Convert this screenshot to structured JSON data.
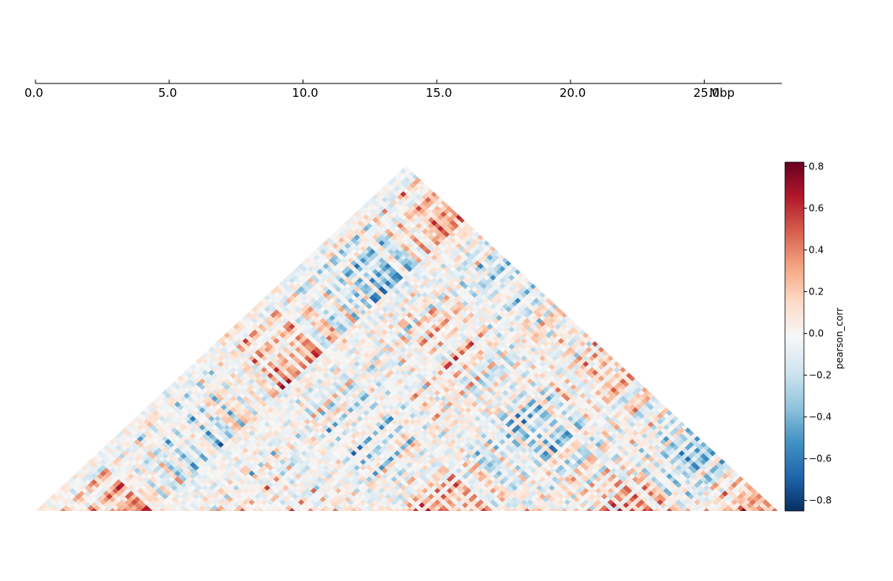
{
  "chart_data": {
    "type": "heatmap",
    "description_type": "triangular Hi-C correlation matrix",
    "xaxis": {
      "range": [
        0.0,
        27.9
      ],
      "ticks": [
        0.0,
        5.0,
        10.0,
        15.0,
        20.0,
        25.0
      ],
      "tick_labels": [
        "0.0",
        "5.0",
        "10.0",
        "15.0",
        "20.0",
        "25.0"
      ],
      "unit_label": "Mbp"
    },
    "matrix": {
      "bins": 120,
      "seed": 20240611,
      "value_range": [
        -0.8,
        0.8
      ]
    },
    "colorbar": {
      "label": "pearson_corr",
      "range": [
        -0.85,
        0.82
      ],
      "ticks": [
        0.8,
        0.6,
        0.4,
        0.2,
        0.0,
        -0.2,
        -0.4,
        -0.6,
        -0.8
      ],
      "tick_labels": [
        "0.8",
        "0.6",
        "0.4",
        "0.2",
        "0.0",
        "−0.2",
        "−0.4",
        "−0.6",
        "−0.8"
      ],
      "colormap": "RdBu_r",
      "colors": [
        "#053061",
        "#2166ac",
        "#4393c3",
        "#92c5de",
        "#d1e5f0",
        "#f7f7f7",
        "#fddbc7",
        "#f4a582",
        "#d6604d",
        "#b2182b",
        "#67001f"
      ]
    }
  }
}
